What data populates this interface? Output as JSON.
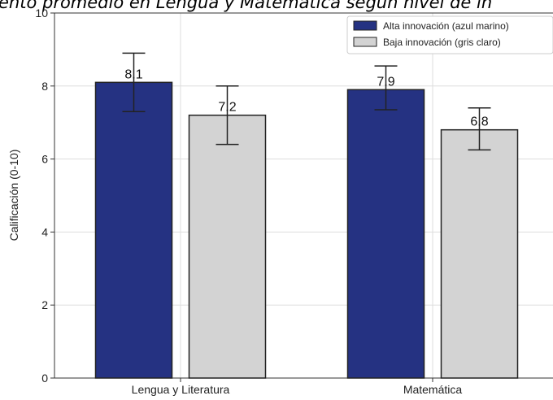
{
  "chart_data": {
    "type": "bar",
    "title": "ento promedio en Lengua y Matemática según nivel de in",
    "ylabel": "Calificación (0-10)",
    "xlabel": "",
    "categories": [
      "Lengua y Literatura",
      "Matemática"
    ],
    "ylim": [
      0,
      10
    ],
    "yticks": [
      0,
      2,
      4,
      6,
      8,
      10
    ],
    "grid": true,
    "legend_position": "top-right",
    "series": [
      {
        "name": "Alta innovación (azul marino)",
        "color": "#253282",
        "values": [
          8.1,
          7.9
        ],
        "error_low": [
          7.3,
          7.35
        ],
        "error_high": [
          8.9,
          8.55
        ],
        "labels": [
          "8.1",
          "7.9"
        ]
      },
      {
        "name": "Baja innovación (gris claro)",
        "color": "#d3d3d3",
        "values": [
          7.2,
          6.8
        ],
        "error_low": [
          6.4,
          6.25
        ],
        "error_high": [
          8.0,
          7.4
        ],
        "labels": [
          "7.2",
          "6.8"
        ]
      }
    ]
  }
}
